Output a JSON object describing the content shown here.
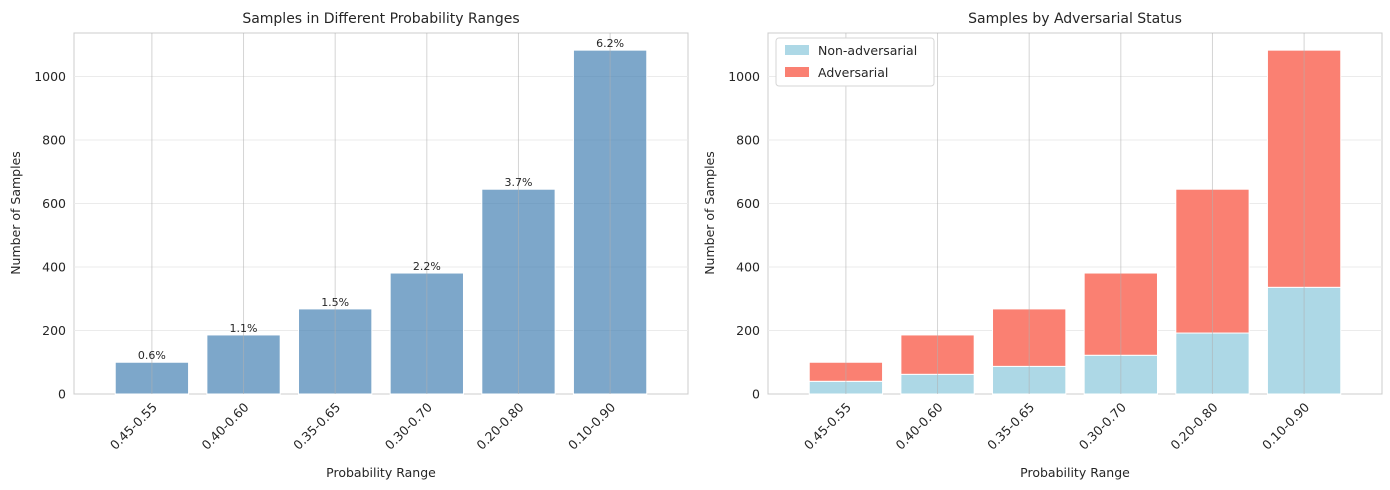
{
  "chart_data": [
    {
      "type": "bar",
      "title": "Samples in Different Probability Ranges",
      "xlabel": "Probability Range",
      "ylabel": "Number of Samples",
      "categories": [
        "0.45-0.55",
        "0.40-0.60",
        "0.35-0.65",
        "0.30-0.70",
        "0.20-0.80",
        "0.10-0.90"
      ],
      "values": [
        100,
        186,
        268,
        381,
        645,
        1083
      ],
      "data_labels": [
        "0.6%",
        "1.1%",
        "1.5%",
        "2.2%",
        "3.7%",
        "6.2%"
      ],
      "ylim": [
        0,
        1137
      ],
      "yticks": [
        0,
        200,
        400,
        600,
        800,
        1000
      ],
      "grid": true,
      "color": "#4682b4"
    },
    {
      "type": "bar",
      "stacked": true,
      "title": "Samples by Adversarial Status",
      "xlabel": "Probability Range",
      "ylabel": "Number of Samples",
      "categories": [
        "0.45-0.55",
        "0.40-0.60",
        "0.35-0.65",
        "0.30-0.70",
        "0.20-0.80",
        "0.10-0.90"
      ],
      "series": [
        {
          "name": "Non-adversarial",
          "values": [
            40,
            62,
            87,
            122,
            192,
            336
          ],
          "color": "#add8e6"
        },
        {
          "name": "Adversarial",
          "values": [
            60,
            124,
            181,
            259,
            453,
            747
          ],
          "color": "#fa8072"
        }
      ],
      "ylim": [
        0,
        1137
      ],
      "yticks": [
        0,
        200,
        400,
        600,
        800,
        1000
      ],
      "grid": true,
      "legend": "top-left"
    }
  ]
}
